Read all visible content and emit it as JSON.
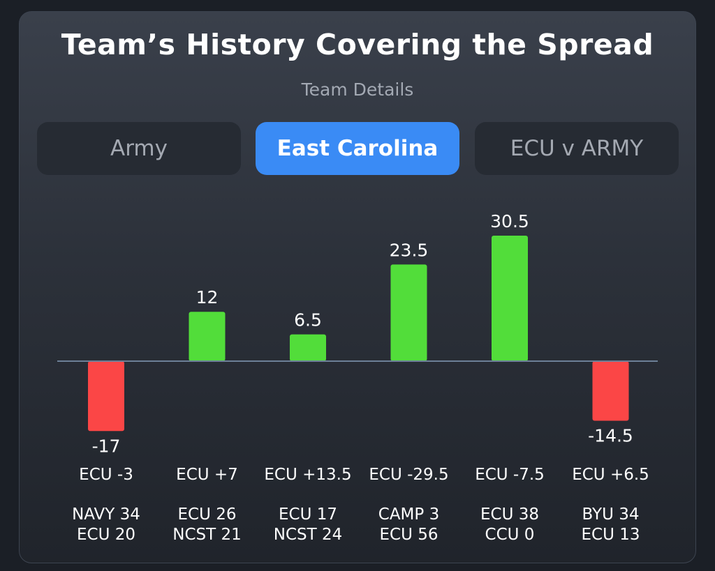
{
  "header": {
    "title": "Team’s History Covering the Spread",
    "subtitle": "Team Details"
  },
  "tabs": [
    {
      "label": "Army",
      "active": false
    },
    {
      "label": "East Carolina",
      "active": true
    },
    {
      "label": "ECU v ARMY",
      "active": false
    }
  ],
  "colors": {
    "positive": "#52dd3a",
    "negative": "#fb4646",
    "baseline": "#6d8098",
    "accent": "#3a8bf5"
  },
  "chart_data": {
    "type": "bar",
    "title": "Team’s History Covering the Spread",
    "categories": [
      "ECU -3",
      "ECU +7",
      "ECU +13.5",
      "ECU -29.5",
      "ECU -7.5",
      "ECU +6.5"
    ],
    "values": [
      -17,
      12,
      6.5,
      23.5,
      30.5,
      -14.5
    ],
    "value_labels": [
      "-17",
      "12",
      "6.5",
      "23.5",
      "30.5",
      "-14.5"
    ],
    "scores": [
      [
        "NAVY 34",
        "ECU 20"
      ],
      [
        "ECU 26",
        "NCST 21"
      ],
      [
        "ECU 17",
        "NCST 24"
      ],
      [
        "CAMP 3",
        "ECU 56"
      ],
      [
        "ECU 38",
        "CCU 0"
      ],
      [
        "BYU 34",
        "ECU 13"
      ]
    ],
    "ylim": [
      -17,
      30.5
    ],
    "xlabel": "",
    "ylabel": "",
    "grid": false
  }
}
